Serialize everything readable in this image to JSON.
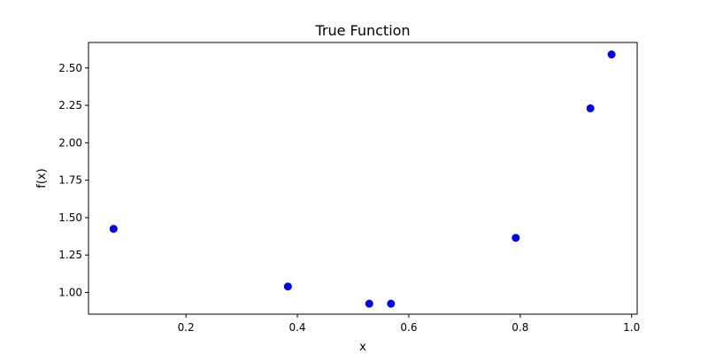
{
  "chart_data": {
    "type": "scatter",
    "title": "True Function",
    "xlabel": "x",
    "ylabel": "f(x)",
    "xlim": [
      0.025,
      1.01
    ],
    "ylim": [
      0.855,
      2.67
    ],
    "xticks": [
      {
        "value": 0.2,
        "label": "0.2"
      },
      {
        "value": 0.4,
        "label": "0.4"
      },
      {
        "value": 0.6,
        "label": "0.6"
      },
      {
        "value": 0.8,
        "label": "0.8"
      },
      {
        "value": 1.0,
        "label": "1.0"
      }
    ],
    "yticks": [
      {
        "value": 1.0,
        "label": "1.00"
      },
      {
        "value": 1.25,
        "label": "1.25"
      },
      {
        "value": 1.5,
        "label": "1.50"
      },
      {
        "value": 1.75,
        "label": "1.75"
      },
      {
        "value": 2.0,
        "label": "2.00"
      },
      {
        "value": 2.25,
        "label": "2.25"
      },
      {
        "value": 2.5,
        "label": "2.50"
      }
    ],
    "grid": false,
    "legend": "none",
    "series": [
      {
        "color": "#0000ff",
        "points": [
          {
            "x": 0.07,
            "y": 1.425
          },
          {
            "x": 0.383,
            "y": 1.04
          },
          {
            "x": 0.529,
            "y": 0.925
          },
          {
            "x": 0.568,
            "y": 0.925
          },
          {
            "x": 0.792,
            "y": 1.365
          },
          {
            "x": 0.926,
            "y": 2.23
          },
          {
            "x": 0.964,
            "y": 2.59
          }
        ]
      }
    ]
  }
}
